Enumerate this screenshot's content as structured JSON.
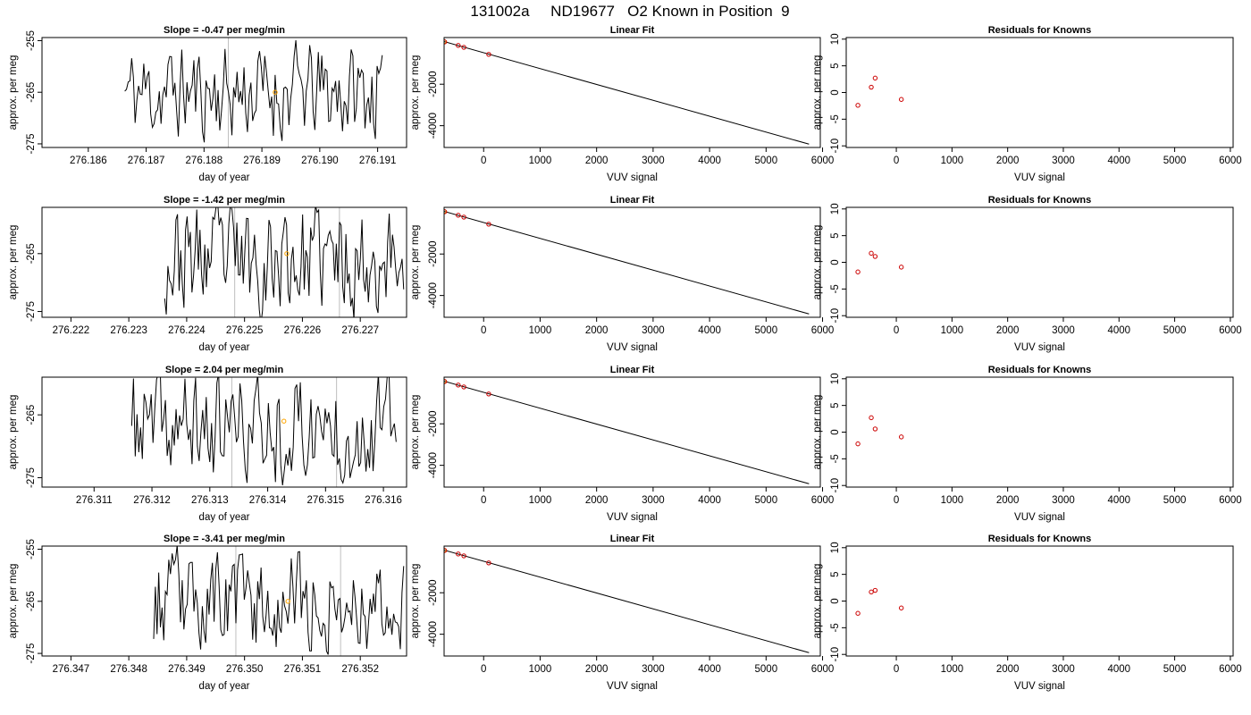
{
  "title": "131002a     ND19677   O2 Known in Position  9",
  "colors": {
    "line": "#000000",
    "grid_vertical": "#bebebe",
    "marker_orange": "#ffa500",
    "marker_red": "#cc0000",
    "background": "#ffffff"
  },
  "chart_data": [
    {
      "type": "line",
      "row": 0,
      "col": 0,
      "title": "Slope =  -0.47  per meg/min",
      "xlabel": "day of year",
      "ylabel": "approx. per meg",
      "xlim": [
        276.1852,
        276.1915
      ],
      "ylim": [
        -275.7,
        -254.4
      ],
      "xticks": [
        276.186,
        276.187,
        276.188,
        276.189,
        276.19,
        276.191
      ],
      "xtick_labels": [
        "276.186",
        "276.187",
        "276.188",
        "276.189",
        "276.190",
        "276.191"
      ],
      "yticks": [
        -275,
        -265,
        -255
      ],
      "ytick_labels": [
        "-275",
        "-265",
        "-255"
      ],
      "vlines": [
        276.18842
      ],
      "x_start": 276.18663,
      "x_end": 276.19108,
      "n_points": 150,
      "seed": 11,
      "mean": -265,
      "amplitude": 7.5,
      "marker": {
        "x": 276.18923,
        "y": -265.0
      }
    },
    {
      "type": "line",
      "row": 1,
      "col": 0,
      "title": "Slope =  -1.42  per meg/min",
      "xlabel": "day of year",
      "ylabel": "approx. per meg",
      "xlim": [
        276.2215,
        276.2278
      ],
      "ylim": [
        -276.0,
        -257.0
      ],
      "xticks": [
        276.222,
        276.223,
        276.224,
        276.225,
        276.226,
        276.227
      ],
      "xtick_labels": [
        "276.222",
        "276.223",
        "276.224",
        "276.225",
        "276.226",
        "276.227"
      ],
      "yticks": [
        -275,
        -265
      ],
      "ytick_labels": [
        "-275",
        "-265"
      ],
      "vlines": [
        276.22483,
        276.22664
      ],
      "x_start": 276.22362,
      "x_end": 276.22775,
      "n_points": 150,
      "seed": 23,
      "mean": -266,
      "amplitude": 7.5,
      "marker": {
        "x": 276.22573,
        "y": -265.0
      }
    },
    {
      "type": "line",
      "row": 2,
      "col": 0,
      "title": "Slope =  2.04  per meg/min",
      "xlabel": "day of year",
      "ylabel": "approx. per meg",
      "xlim": [
        276.3101,
        276.3164
      ],
      "ylim": [
        -276.5,
        -259.0
      ],
      "xticks": [
        276.311,
        276.312,
        276.313,
        276.314,
        276.315,
        276.316
      ],
      "xtick_labels": [
        "276.311",
        "276.312",
        "276.313",
        "276.314",
        "276.315",
        "276.316"
      ],
      "yticks": [
        -275,
        -265
      ],
      "ytick_labels": [
        "-275",
        "-265"
      ],
      "vlines": [
        276.31338,
        276.31519
      ],
      "x_start": 276.31165,
      "x_end": 276.31622,
      "n_points": 150,
      "seed": 37,
      "mean": -267,
      "amplitude": 7.0,
      "marker": {
        "x": 276.31428,
        "y": -266.0
      }
    },
    {
      "type": "line",
      "row": 3,
      "col": 0,
      "title": "Slope =  -3.41  per meg/min",
      "xlabel": "day of year",
      "ylabel": "approx. per meg",
      "xlim": [
        276.3465,
        276.3528
      ],
      "ylim": [
        -275.5,
        -254.4
      ],
      "xticks": [
        276.347,
        276.348,
        276.349,
        276.35,
        276.351,
        276.352
      ],
      "xtick_labels": [
        "276.347",
        "276.348",
        "276.349",
        "276.350",
        "276.351",
        "276.352"
      ],
      "yticks": [
        -275,
        -265,
        -255
      ],
      "ytick_labels": [
        "-275",
        "-265",
        "-255"
      ],
      "vlines": [
        276.34985,
        276.35166
      ],
      "x_start": 276.34843,
      "x_end": 276.35275,
      "n_points": 150,
      "seed": 53,
      "mean": -265,
      "amplitude": 7.5,
      "marker": {
        "x": 276.35075,
        "y": -265.0
      }
    },
    {
      "type": "scatter",
      "row": 0,
      "col": 1,
      "title": "Linear Fit",
      "xlabel": "VUV signal",
      "ylabel": "approx. per meg",
      "xlim": [
        -700,
        5960
      ],
      "ylim": [
        -5050,
        250
      ],
      "xticks": [
        0,
        1000,
        2000,
        3000,
        4000,
        5000,
        6000
      ],
      "xtick_labels": [
        "0",
        "1000",
        "2000",
        "3000",
        "4000",
        "5000",
        "6000"
      ],
      "yticks": [
        -4000,
        -2000
      ],
      "ytick_labels": [
        "-4000",
        "-2000"
      ],
      "fit_line": {
        "x": [
          -700,
          5760
        ],
        "y": [
          55,
          -4890
        ]
      },
      "points": [
        {
          "x": -700,
          "y": 55,
          "color": "marker_orange"
        },
        {
          "x": -690,
          "y": 40,
          "color": "marker_red"
        },
        {
          "x": -450,
          "y": -130,
          "color": "marker_red"
        },
        {
          "x": -350,
          "y": -220,
          "color": "marker_red"
        },
        {
          "x": 90,
          "y": -560,
          "color": "marker_red"
        }
      ]
    },
    {
      "type": "scatter",
      "row": 1,
      "col": 1,
      "title": "Linear Fit",
      "xlabel": "VUV signal",
      "ylabel": "approx. per meg",
      "xlim": [
        -700,
        5960
      ],
      "ylim": [
        -5050,
        250
      ],
      "xticks": [
        0,
        1000,
        2000,
        3000,
        4000,
        5000,
        6000
      ],
      "xtick_labels": [
        "0",
        "1000",
        "2000",
        "3000",
        "4000",
        "5000",
        "6000"
      ],
      "yticks": [
        -4000,
        -2000
      ],
      "ytick_labels": [
        "-4000",
        "-2000"
      ],
      "fit_line": {
        "x": [
          -700,
          5760
        ],
        "y": [
          55,
          -4890
        ]
      },
      "points": [
        {
          "x": -700,
          "y": 55,
          "color": "marker_orange"
        },
        {
          "x": -690,
          "y": 40,
          "color": "marker_red"
        },
        {
          "x": -450,
          "y": -130,
          "color": "marker_red"
        },
        {
          "x": -350,
          "y": -220,
          "color": "marker_red"
        },
        {
          "x": 90,
          "y": -560,
          "color": "marker_red"
        }
      ]
    },
    {
      "type": "scatter",
      "row": 2,
      "col": 1,
      "title": "Linear Fit",
      "xlabel": "VUV signal",
      "ylabel": "approx. per meg",
      "xlim": [
        -700,
        5960
      ],
      "ylim": [
        -5050,
        250
      ],
      "xticks": [
        0,
        1000,
        2000,
        3000,
        4000,
        5000,
        6000
      ],
      "xtick_labels": [
        "0",
        "1000",
        "2000",
        "3000",
        "4000",
        "5000",
        "6000"
      ],
      "yticks": [
        -4000,
        -2000
      ],
      "ytick_labels": [
        "-4000",
        "-2000"
      ],
      "fit_line": {
        "x": [
          -700,
          5760
        ],
        "y": [
          55,
          -4890
        ]
      },
      "points": [
        {
          "x": -700,
          "y": 55,
          "color": "marker_orange"
        },
        {
          "x": -690,
          "y": 40,
          "color": "marker_red"
        },
        {
          "x": -450,
          "y": -130,
          "color": "marker_red"
        },
        {
          "x": -350,
          "y": -220,
          "color": "marker_red"
        },
        {
          "x": 90,
          "y": -560,
          "color": "marker_red"
        }
      ]
    },
    {
      "type": "scatter",
      "row": 3,
      "col": 1,
      "title": "Linear Fit",
      "xlabel": "VUV signal",
      "ylabel": "approx. per meg",
      "xlim": [
        -700,
        5960
      ],
      "ylim": [
        -5050,
        250
      ],
      "xticks": [
        0,
        1000,
        2000,
        3000,
        4000,
        5000,
        6000
      ],
      "xtick_labels": [
        "0",
        "1000",
        "2000",
        "3000",
        "4000",
        "5000",
        "6000"
      ],
      "yticks": [
        -4000,
        -2000
      ],
      "ytick_labels": [
        "-4000",
        "-2000"
      ],
      "fit_line": {
        "x": [
          -700,
          5760
        ],
        "y": [
          55,
          -4890
        ]
      },
      "points": [
        {
          "x": -700,
          "y": 55,
          "color": "marker_orange"
        },
        {
          "x": -690,
          "y": 40,
          "color": "marker_red"
        },
        {
          "x": -450,
          "y": -130,
          "color": "marker_red"
        },
        {
          "x": -350,
          "y": -220,
          "color": "marker_red"
        },
        {
          "x": 90,
          "y": -560,
          "color": "marker_red"
        }
      ]
    },
    {
      "type": "scatter",
      "row": 0,
      "col": 2,
      "title": "Residuals for Knowns",
      "xlabel": "VUV signal",
      "ylabel": "approx. per meg",
      "xlim": [
        -900,
        6050
      ],
      "ylim": [
        -10.3,
        10.3
      ],
      "xticks": [
        0,
        1000,
        2000,
        3000,
        4000,
        5000,
        6000
      ],
      "xtick_labels": [
        "0",
        "1000",
        "2000",
        "3000",
        "4000",
        "5000",
        "6000"
      ],
      "yticks": [
        -10,
        -5,
        0,
        5,
        10
      ],
      "ytick_labels": [
        "-10",
        "-5",
        "0",
        "5",
        "10"
      ],
      "points": [
        {
          "x": -690,
          "y": -2.4,
          "color": "marker_red"
        },
        {
          "x": -450,
          "y": 1.0,
          "color": "marker_red"
        },
        {
          "x": -380,
          "y": 2.7,
          "color": "marker_red"
        },
        {
          "x": 90,
          "y": -1.3,
          "color": "marker_red"
        }
      ]
    },
    {
      "type": "scatter",
      "row": 1,
      "col": 2,
      "title": "Residuals for Knowns",
      "xlabel": "VUV signal",
      "ylabel": "approx. per meg",
      "xlim": [
        -900,
        6050
      ],
      "ylim": [
        -10.3,
        10.3
      ],
      "xticks": [
        0,
        1000,
        2000,
        3000,
        4000,
        5000,
        6000
      ],
      "xtick_labels": [
        "0",
        "1000",
        "2000",
        "3000",
        "4000",
        "5000",
        "6000"
      ],
      "yticks": [
        -10,
        -5,
        0,
        5,
        10
      ],
      "ytick_labels": [
        "-10",
        "-5",
        "0",
        "5",
        "10"
      ],
      "points": [
        {
          "x": -690,
          "y": -1.8,
          "color": "marker_red"
        },
        {
          "x": -450,
          "y": 1.7,
          "color": "marker_red"
        },
        {
          "x": -380,
          "y": 1.1,
          "color": "marker_red"
        },
        {
          "x": 90,
          "y": -0.9,
          "color": "marker_red"
        }
      ]
    },
    {
      "type": "scatter",
      "row": 2,
      "col": 2,
      "title": "Residuals for Knowns",
      "xlabel": "VUV signal",
      "ylabel": "approx. per meg",
      "xlim": [
        -900,
        6050
      ],
      "ylim": [
        -10.3,
        10.3
      ],
      "xticks": [
        0,
        1000,
        2000,
        3000,
        4000,
        5000,
        6000
      ],
      "xtick_labels": [
        "0",
        "1000",
        "2000",
        "3000",
        "4000",
        "5000",
        "6000"
      ],
      "yticks": [
        -10,
        -5,
        0,
        5,
        10
      ],
      "ytick_labels": [
        "-10",
        "-5",
        "0",
        "5",
        "10"
      ],
      "points": [
        {
          "x": -690,
          "y": -2.2,
          "color": "marker_red"
        },
        {
          "x": -450,
          "y": 2.7,
          "color": "marker_red"
        },
        {
          "x": -380,
          "y": 0.6,
          "color": "marker_red"
        },
        {
          "x": 90,
          "y": -0.9,
          "color": "marker_red"
        }
      ]
    },
    {
      "type": "scatter",
      "row": 3,
      "col": 2,
      "title": "Residuals for Knowns",
      "xlabel": "VUV signal",
      "ylabel": "approx. per meg",
      "xlim": [
        -900,
        6050
      ],
      "ylim": [
        -10.3,
        10.3
      ],
      "xticks": [
        0,
        1000,
        2000,
        3000,
        4000,
        5000,
        6000
      ],
      "xtick_labels": [
        "0",
        "1000",
        "2000",
        "3000",
        "4000",
        "5000",
        "6000"
      ],
      "yticks": [
        -10,
        -5,
        0,
        5,
        10
      ],
      "ytick_labels": [
        "-10",
        "-5",
        "0",
        "5",
        "10"
      ],
      "points": [
        {
          "x": -690,
          "y": -2.3,
          "color": "marker_red"
        },
        {
          "x": -450,
          "y": 1.7,
          "color": "marker_red"
        },
        {
          "x": -380,
          "y": 2.0,
          "color": "marker_red"
        },
        {
          "x": 90,
          "y": -1.3,
          "color": "marker_red"
        }
      ]
    }
  ]
}
